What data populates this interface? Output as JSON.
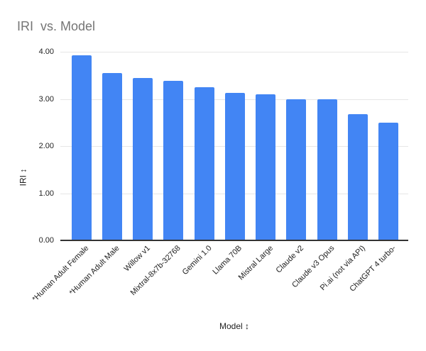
{
  "title": "IRI  vs. Model",
  "colors": {
    "bar": "#4285f4",
    "title": "#757575",
    "gridline": "#e6e6e6",
    "axis_line": "#333333",
    "label": "#222222"
  },
  "chart_data": {
    "type": "bar",
    "title": "IRI  vs. Model",
    "xlabel": "Model ↕",
    "ylabel": "IRI ↕",
    "categories": [
      "*Human Adult Female",
      "*Human Adult Male",
      "Willow v1",
      "Mixtral-8x7b-32768",
      "Gemini 1.0",
      "Llama 70B",
      "Mistral Large",
      "Claude v2",
      "Claude v3 Opus",
      "Pi.ai (not via API)",
      "ChatGPT 4 turbo-"
    ],
    "values": [
      3.92,
      3.55,
      3.44,
      3.39,
      3.25,
      3.13,
      3.1,
      3.0,
      2.99,
      2.68,
      2.5
    ],
    "ylim": [
      0,
      4
    ],
    "yticks": [
      "0.00",
      "1.00",
      "2.00",
      "3.00",
      "4.00"
    ],
    "grid": true,
    "legend": "none",
    "bar_color": "#4285f4"
  }
}
